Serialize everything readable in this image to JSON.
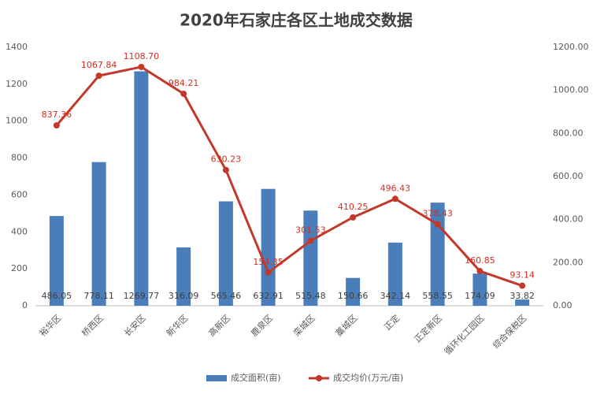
{
  "chart_data": {
    "type": "bar-line",
    "title": "2020年石家庄各区土地成交数据",
    "categories": [
      "裕华区",
      "桥西区",
      "长安区",
      "新华区",
      "高新区",
      "鹿泉区",
      "栾城区",
      "藁城区",
      "正定",
      "正定新区",
      "循环化工园区",
      "综合保税区"
    ],
    "series": [
      {
        "name": "成交面积(亩)",
        "color": "#4a7ebb",
        "kind": "bar",
        "axis": "y",
        "values": [
          486.05,
          778.11,
          1269.77,
          316.09,
          565.46,
          632.91,
          515.48,
          150.66,
          342.14,
          558.55,
          174.09,
          33.82
        ],
        "value_labels": [
          "486.05",
          "778.11",
          "1269.77",
          "316.09",
          "565.46",
          "632.91",
          "515.48",
          "150.66",
          "342.14",
          "558.55",
          "174.09",
          "33.82"
        ]
      },
      {
        "name": "成交均价(万元/亩)",
        "color": "#c0392b",
        "kind": "line",
        "axis": "y2",
        "values": [
          837.36,
          1067.84,
          1108.7,
          984.21,
          630.23,
          154.35,
          301.53,
          410.25,
          496.43,
          378.43,
          160.85,
          93.14
        ],
        "value_labels": [
          "837.36",
          "1067.84",
          "1108.70",
          "984.21",
          "630.23",
          "154.35",
          "301.53",
          "410.25",
          "496.43",
          "378.43",
          "160.85",
          "93.14"
        ]
      }
    ],
    "ylim": [
      0,
      1400
    ],
    "yticks": [
      0,
      200,
      400,
      600,
      800,
      1000,
      1200,
      1400
    ],
    "y2lim": [
      0,
      1200
    ],
    "y2ticks": [
      {
        "value": 0,
        "label": "0.00"
      },
      {
        "value": 200,
        "label": "200.00"
      },
      {
        "value": 400,
        "label": "400.00"
      },
      {
        "value": 600,
        "label": "600.00"
      },
      {
        "value": 800,
        "label": "800.00"
      },
      {
        "value": 1000,
        "label": "1000.00"
      },
      {
        "value": 1200,
        "label": "1200.00"
      }
    ],
    "grid": false
  }
}
